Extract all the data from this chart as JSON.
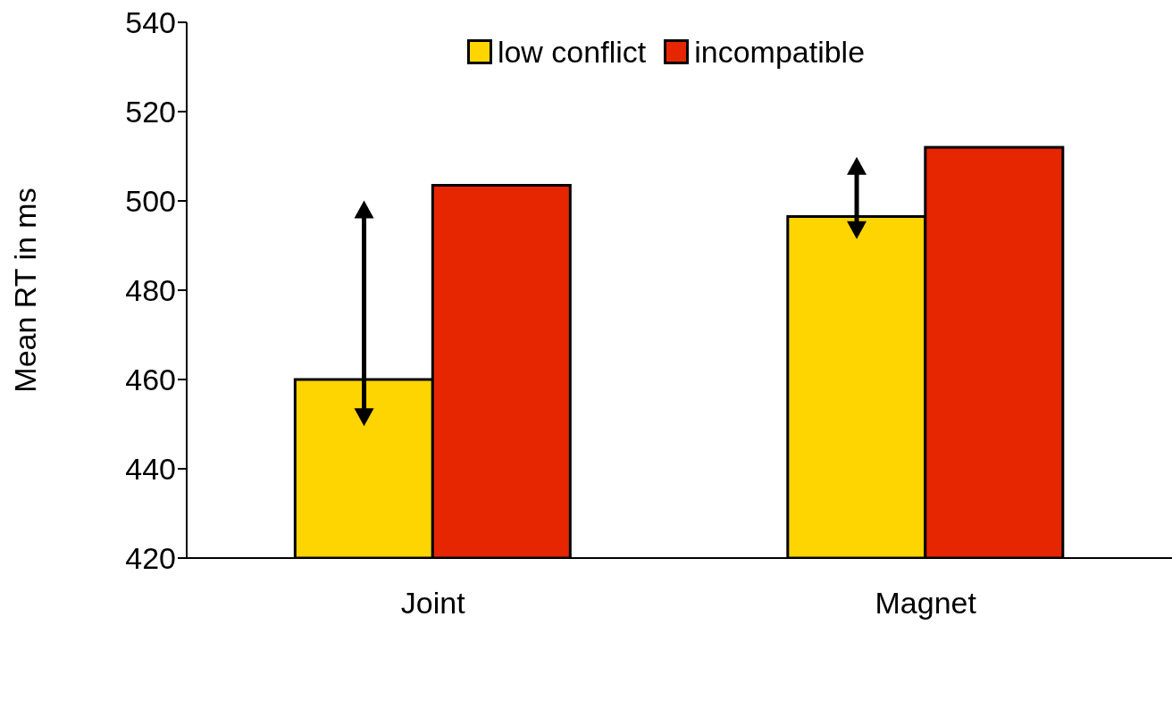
{
  "chart_data": {
    "type": "bar",
    "ylabel": "Mean RT in ms",
    "categories": [
      "Joint",
      "Magnet"
    ],
    "series": [
      {
        "name": "low conflict",
        "color": "#ffd500",
        "values": [
          460,
          496.5
        ]
      },
      {
        "name": "incompatible",
        "color": "#e62600",
        "values": [
          503.5,
          512
        ]
      }
    ],
    "ylim": [
      420,
      540
    ],
    "yticks": [
      420,
      440,
      460,
      480,
      500,
      520,
      540
    ],
    "grid": false,
    "legend": "top"
  }
}
